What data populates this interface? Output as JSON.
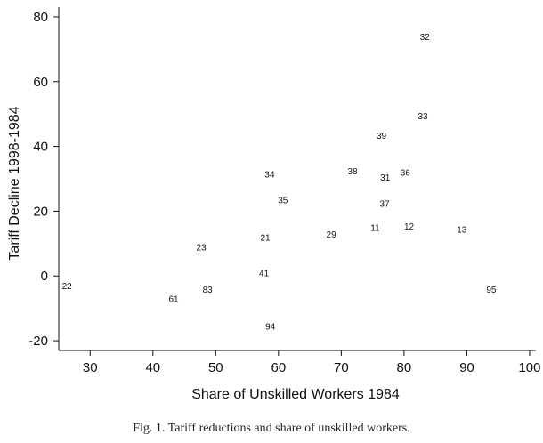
{
  "caption": "Fig. 1. Tariff reductions and share of unskilled workers.",
  "chart_data": {
    "type": "scatter",
    "xlabel": "Share of Unskilled Workers 1984",
    "ylabel": "Tariff Decline 1998-1984",
    "xlim": [
      25,
      101
    ],
    "ylim": [
      -23,
      83
    ],
    "xticks": [
      30,
      40,
      50,
      60,
      70,
      80,
      90,
      100
    ],
    "yticks": [
      -20,
      0,
      20,
      40,
      60,
      80
    ],
    "grid": false,
    "marker": "text-label",
    "points": [
      {
        "label": "32",
        "x": 83.3,
        "y": 74.0
      },
      {
        "label": "33",
        "x": 83.0,
        "y": 49.5
      },
      {
        "label": "39",
        "x": 76.4,
        "y": 43.5
      },
      {
        "label": "38",
        "x": 71.8,
        "y": 32.5
      },
      {
        "label": "31",
        "x": 77.0,
        "y": 30.5
      },
      {
        "label": "36",
        "x": 80.2,
        "y": 32.0
      },
      {
        "label": "34",
        "x": 58.6,
        "y": 31.5
      },
      {
        "label": "35",
        "x": 60.7,
        "y": 23.5
      },
      {
        "label": "37",
        "x": 76.9,
        "y": 22.5
      },
      {
        "label": "11",
        "x": 75.4,
        "y": 15.0
      },
      {
        "label": "12",
        "x": 80.8,
        "y": 15.5
      },
      {
        "label": "13",
        "x": 89.2,
        "y": 14.5
      },
      {
        "label": "29",
        "x": 68.4,
        "y": 13.0
      },
      {
        "label": "21",
        "x": 57.9,
        "y": 12.0
      },
      {
        "label": "23",
        "x": 47.7,
        "y": 9.0
      },
      {
        "label": "41",
        "x": 57.7,
        "y": 1.0
      },
      {
        "label": "22",
        "x": 26.3,
        "y": -3.0
      },
      {
        "label": "83",
        "x": 48.7,
        "y": -4.0
      },
      {
        "label": "95",
        "x": 93.9,
        "y": -4.0
      },
      {
        "label": "61",
        "x": 43.3,
        "y": -7.0
      },
      {
        "label": "94",
        "x": 58.7,
        "y": -15.5
      }
    ]
  }
}
